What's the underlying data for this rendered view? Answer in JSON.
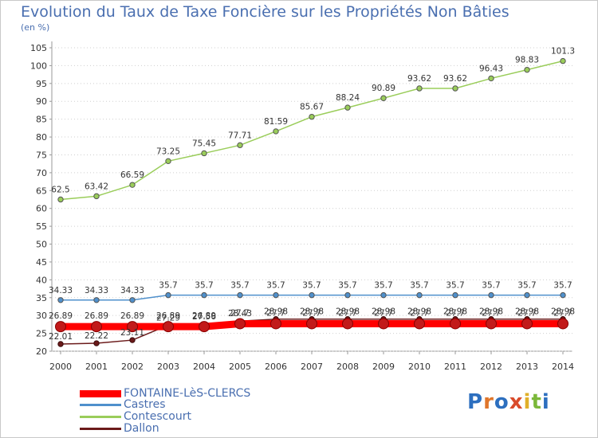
{
  "title": "Evolution du Taux de Taxe Foncière sur les Propriétés Non Bâties",
  "unit": "(en %)",
  "logo": "Proxiti",
  "chart_data": {
    "type": "line",
    "title": "Evolution du Taux de Taxe Foncière sur les Propriétés Non Bâties",
    "ylabel": "(en %)",
    "xlabel": "",
    "categories": [
      "2000",
      "2001",
      "2002",
      "2003",
      "2004",
      "2005",
      "2006",
      "2007",
      "2008",
      "2009",
      "2010",
      "2011",
      "2012",
      "2013",
      "2014"
    ],
    "ylim": [
      20,
      105
    ],
    "yticks": [
      20,
      25,
      30,
      35,
      40,
      45,
      50,
      55,
      60,
      65,
      70,
      75,
      80,
      85,
      90,
      95,
      100,
      105
    ],
    "grid": "dotted horizontal",
    "series": [
      {
        "name": "FONTAINE-LèS-CLERCS",
        "color": "#ff0000",
        "values": [
          26.89,
          26.89,
          26.89,
          26.89,
          26.89,
          27.7,
          27.7,
          27.7,
          27.7,
          27.7,
          27.7,
          27.7,
          27.7,
          27.7,
          27.7
        ],
        "labels": [
          "26.89",
          "26.89",
          "26.89",
          "26.89",
          "26.89",
          "27.7",
          "27.7",
          "27.7",
          "27.7",
          "27.7",
          "27.7",
          "27.7",
          "27.7",
          "27.7",
          "27.7"
        ]
      },
      {
        "name": "Castres",
        "color": "#4f90cc",
        "values": [
          34.33,
          34.33,
          34.33,
          35.7,
          35.7,
          35.7,
          35.7,
          35.7,
          35.7,
          35.7,
          35.7,
          35.7,
          35.7,
          35.7,
          35.7
        ],
        "labels": [
          "34.33",
          "34.33",
          "34.33",
          "35.7",
          "35.7",
          "35.7",
          "35.7",
          "35.7",
          "35.7",
          "35.7",
          "35.7",
          "35.7",
          "35.7",
          "35.7",
          "35.7"
        ]
      },
      {
        "name": "Contescourt",
        "color": "#9acd5a",
        "values": [
          62.5,
          63.42,
          66.59,
          73.25,
          75.45,
          77.71,
          81.59,
          85.67,
          88.24,
          90.89,
          93.62,
          93.62,
          96.43,
          98.83,
          101.3
        ],
        "labels": [
          "62.5",
          "63.42",
          "66.59",
          "73.25",
          "75.45",
          "77.71",
          "81.59",
          "85.67",
          "88.24",
          "90.89",
          "93.62",
          "93.62",
          "96.43",
          "98.83",
          "101.3"
        ]
      },
      {
        "name": "Dallon",
        "color": "#6b1a1a",
        "values": [
          22.01,
          22.22,
          23.11,
          27.29,
          27.56,
          28.43,
          28.98,
          28.98,
          28.98,
          28.98,
          28.98,
          28.98,
          28.98,
          28.98,
          28.98
        ],
        "labels": [
          "22.01",
          "22.22",
          "23.11",
          "27.29",
          "27.56",
          "28.43",
          "28.98",
          "28.98",
          "28.98",
          "28.98",
          "28.98",
          "28.98",
          "28.98",
          "28.98",
          "28.98"
        ]
      }
    ]
  }
}
